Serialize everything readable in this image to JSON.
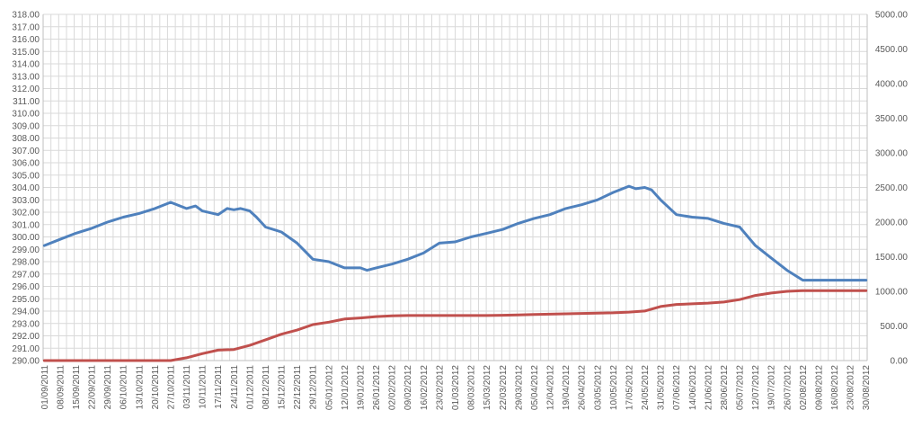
{
  "chart_data": {
    "type": "line",
    "title": "",
    "xlabel": "",
    "ylabel": "",
    "y2label": "",
    "grid": true,
    "legend": "none",
    "ylim": [
      290,
      318
    ],
    "y2lim": [
      0,
      5000
    ],
    "y_ticks": [
      "290.00",
      "291.00",
      "292.00",
      "293.00",
      "294.00",
      "295.00",
      "296.00",
      "297.00",
      "298.00",
      "299.00",
      "300.00",
      "301.00",
      "302.00",
      "303.00",
      "304.00",
      "305.00",
      "306.00",
      "307.00",
      "308.00",
      "309.00",
      "310.00",
      "311.00",
      "312.00",
      "313.00",
      "314.00",
      "315.00",
      "316.00",
      "317.00",
      "318.00"
    ],
    "y2_ticks": [
      "0.00",
      "500.00",
      "1000.00",
      "1500.00",
      "2000.00",
      "2500.00",
      "3000.00",
      "3500.00",
      "4000.00",
      "4500.00",
      "5000.00"
    ],
    "x_ticks": [
      "01/09/2011",
      "08/09/2011",
      "15/09/2011",
      "22/09/2011",
      "29/09/2011",
      "06/10/2011",
      "13/10/2011",
      "20/10/2011",
      "27/10/2011",
      "03/11/2011",
      "10/11/2011",
      "17/11/2011",
      "24/11/2011",
      "01/12/2011",
      "08/12/2011",
      "15/12/2011",
      "22/12/2011",
      "29/12/2011",
      "05/01/2012",
      "12/01/2012",
      "19/01/2012",
      "26/01/2012",
      "02/02/2012",
      "09/02/2012",
      "16/02/2012",
      "23/02/2012",
      "01/03/2012",
      "08/03/2012",
      "15/03/2012",
      "22/03/2012",
      "29/03/2012",
      "05/04/2012",
      "12/04/2012",
      "19/04/2012",
      "26/04/2012",
      "03/05/2012",
      "10/05/2012",
      "17/05/2012",
      "24/05/2012",
      "31/05/2012",
      "07/06/2012",
      "14/06/2012",
      "21/06/2012",
      "28/06/2012",
      "05/07/2012",
      "12/07/2012",
      "19/07/2012",
      "26/07/2012",
      "02/08/2012",
      "09/08/2012",
      "16/08/2012",
      "23/08/2012",
      "30/08/2012"
    ],
    "series": [
      {
        "axis": "left",
        "color": "#4F81BD",
        "points": [
          [
            "01/09/2011",
            299.3
          ],
          [
            "08/09/2011",
            299.8
          ],
          [
            "15/09/2011",
            300.3
          ],
          [
            "22/09/2011",
            300.7
          ],
          [
            "29/09/2011",
            301.2
          ],
          [
            "06/10/2011",
            301.6
          ],
          [
            "13/10/2011",
            301.9
          ],
          [
            "20/10/2011",
            302.3
          ],
          [
            "27/10/2011",
            302.8
          ],
          [
            "03/11/2011",
            302.3
          ],
          [
            "07/11/2011",
            302.5
          ],
          [
            "10/11/2011",
            302.1
          ],
          [
            "17/11/2011",
            301.8
          ],
          [
            "21/11/2011",
            302.3
          ],
          [
            "24/11/2011",
            302.2
          ],
          [
            "27/11/2011",
            302.3
          ],
          [
            "01/12/2011",
            302.1
          ],
          [
            "04/12/2011",
            301.6
          ],
          [
            "08/12/2011",
            300.8
          ],
          [
            "15/12/2011",
            300.4
          ],
          [
            "22/12/2011",
            299.5
          ],
          [
            "29/12/2011",
            298.2
          ],
          [
            "05/01/2012",
            298.0
          ],
          [
            "12/01/2012",
            297.5
          ],
          [
            "19/01/2012",
            297.5
          ],
          [
            "22/01/2012",
            297.3
          ],
          [
            "26/01/2012",
            297.5
          ],
          [
            "02/02/2012",
            297.8
          ],
          [
            "09/02/2012",
            298.2
          ],
          [
            "16/02/2012",
            298.7
          ],
          [
            "23/02/2012",
            299.5
          ],
          [
            "01/03/2012",
            299.6
          ],
          [
            "08/03/2012",
            300.0
          ],
          [
            "15/03/2012",
            300.3
          ],
          [
            "22/03/2012",
            300.6
          ],
          [
            "29/03/2012",
            301.1
          ],
          [
            "05/04/2012",
            301.5
          ],
          [
            "12/04/2012",
            301.8
          ],
          [
            "19/04/2012",
            302.3
          ],
          [
            "26/04/2012",
            302.6
          ],
          [
            "03/05/2012",
            303.0
          ],
          [
            "10/05/2012",
            303.6
          ],
          [
            "17/05/2012",
            304.1
          ],
          [
            "20/05/2012",
            303.9
          ],
          [
            "24/05/2012",
            304.0
          ],
          [
            "27/05/2012",
            303.8
          ],
          [
            "31/05/2012",
            303.0
          ],
          [
            "07/06/2012",
            301.8
          ],
          [
            "14/06/2012",
            301.6
          ],
          [
            "21/06/2012",
            301.5
          ],
          [
            "28/06/2012",
            301.1
          ],
          [
            "05/07/2012",
            300.8
          ],
          [
            "12/07/2012",
            299.3
          ],
          [
            "19/07/2012",
            298.3
          ],
          [
            "26/07/2012",
            297.3
          ],
          [
            "02/08/2012",
            296.5
          ],
          [
            "09/08/2012",
            296.5
          ],
          [
            "16/08/2012",
            296.5
          ],
          [
            "23/08/2012",
            296.5
          ],
          [
            "30/08/2012",
            296.5
          ]
        ]
      },
      {
        "axis": "right",
        "color": "#C0504D",
        "points": [
          [
            "01/09/2011",
            0
          ],
          [
            "08/09/2011",
            0
          ],
          [
            "15/09/2011",
            0
          ],
          [
            "22/09/2011",
            0
          ],
          [
            "29/09/2011",
            0
          ],
          [
            "06/10/2011",
            0
          ],
          [
            "13/10/2011",
            0
          ],
          [
            "20/10/2011",
            0
          ],
          [
            "27/10/2011",
            0
          ],
          [
            "03/11/2011",
            40
          ],
          [
            "10/11/2011",
            100
          ],
          [
            "17/11/2011",
            150
          ],
          [
            "24/11/2011",
            160
          ],
          [
            "01/12/2011",
            220
          ],
          [
            "08/12/2011",
            300
          ],
          [
            "15/12/2011",
            380
          ],
          [
            "22/12/2011",
            440
          ],
          [
            "29/12/2011",
            520
          ],
          [
            "05/01/2012",
            555
          ],
          [
            "12/01/2012",
            600
          ],
          [
            "19/01/2012",
            615
          ],
          [
            "26/01/2012",
            635
          ],
          [
            "02/02/2012",
            645
          ],
          [
            "09/02/2012",
            650
          ],
          [
            "16/02/2012",
            650
          ],
          [
            "23/02/2012",
            650
          ],
          [
            "01/03/2012",
            650
          ],
          [
            "08/03/2012",
            650
          ],
          [
            "15/03/2012",
            650
          ],
          [
            "22/03/2012",
            655
          ],
          [
            "29/03/2012",
            660
          ],
          [
            "05/04/2012",
            665
          ],
          [
            "12/04/2012",
            670
          ],
          [
            "19/04/2012",
            675
          ],
          [
            "26/04/2012",
            680
          ],
          [
            "03/05/2012",
            685
          ],
          [
            "10/05/2012",
            690
          ],
          [
            "17/05/2012",
            700
          ],
          [
            "24/05/2012",
            715
          ],
          [
            "31/05/2012",
            780
          ],
          [
            "07/06/2012",
            810
          ],
          [
            "14/06/2012",
            820
          ],
          [
            "21/06/2012",
            830
          ],
          [
            "28/06/2012",
            845
          ],
          [
            "05/07/2012",
            880
          ],
          [
            "12/07/2012",
            940
          ],
          [
            "19/07/2012",
            975
          ],
          [
            "26/07/2012",
            1000
          ],
          [
            "02/08/2012",
            1010
          ],
          [
            "09/08/2012",
            1010
          ],
          [
            "16/08/2012",
            1010
          ],
          [
            "23/08/2012",
            1010
          ],
          [
            "30/08/2012",
            1010
          ]
        ]
      }
    ]
  }
}
